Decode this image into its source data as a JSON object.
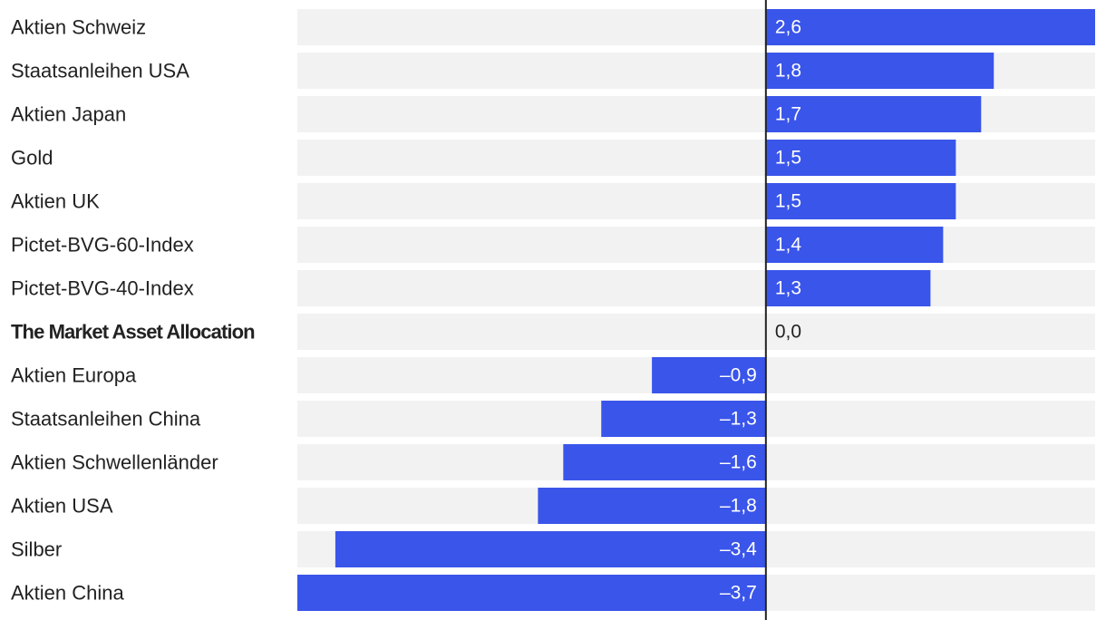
{
  "chart_data": {
    "type": "bar",
    "orientation": "horizontal",
    "categories": [
      "Aktien Schweiz",
      "Staatsanleihen USA",
      "Aktien Japan",
      "Gold",
      "Aktien UK",
      "Pictet-BVG-60-Index",
      "Pictet-BVG-40-Index",
      "The Market Asset Allocation",
      "Aktien Europa",
      "Staatsanleihen China",
      "Aktien Schwellenländer",
      "Aktien USA",
      "Silber",
      "Aktien China"
    ],
    "values": [
      2.6,
      1.8,
      1.7,
      1.5,
      1.5,
      1.4,
      1.3,
      0.0,
      -0.9,
      -1.3,
      -1.6,
      -1.8,
      -3.4,
      -3.7
    ],
    "value_labels": [
      "2,6",
      "1,8",
      "1,7",
      "1,5",
      "1,5",
      "1,4",
      "1,3",
      "0,0",
      "–0,9",
      "–1,3",
      "–1,6",
      "–1,8",
      "–3,4",
      "–3,7"
    ],
    "highlighted_category": "The Market Asset Allocation",
    "xlim": [
      -3.7,
      2.6
    ],
    "title": "",
    "xlabel": "",
    "ylabel": "",
    "grid": false,
    "legend": "none",
    "colors": {
      "bar": "#3a55ea",
      "track": "#f2f2f2",
      "zero_line": "#222222",
      "label_on_bar": "#ffffff",
      "label_plain": "#222222"
    }
  }
}
